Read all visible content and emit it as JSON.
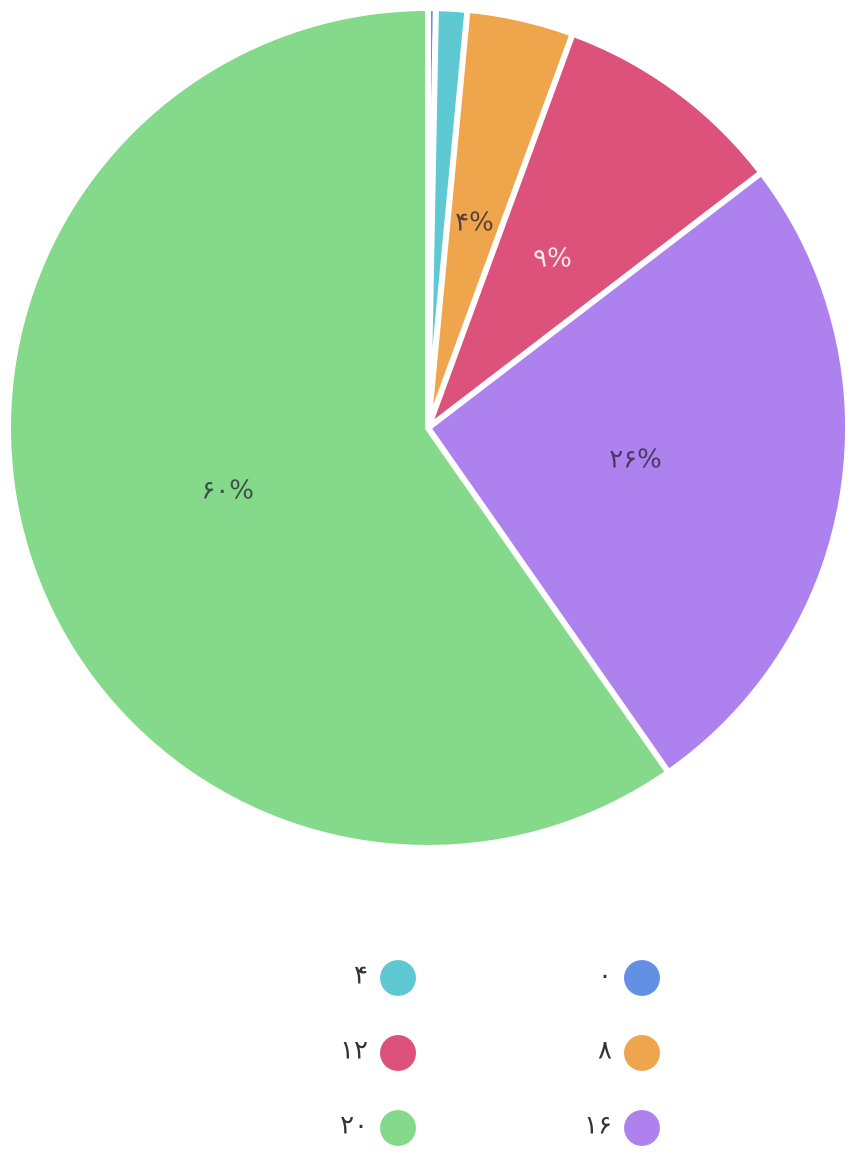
{
  "chart_data": {
    "type": "pie",
    "categories": [
      "۰",
      "۴",
      "۸",
      "۱۲",
      "۱۶",
      "۲۰"
    ],
    "values": [
      0.3,
      1.2,
      4.1,
      9,
      25.7,
      59.7
    ],
    "value_labels": [
      null,
      null,
      "۴%",
      "۹%",
      "۲۶%",
      "۶۰%"
    ],
    "colors": [
      "#6390e3",
      "#5fc9d3",
      "#efa54c",
      "#dc527a",
      "#ad82ef",
      "#84d98a"
    ],
    "legend": "bottom"
  }
}
